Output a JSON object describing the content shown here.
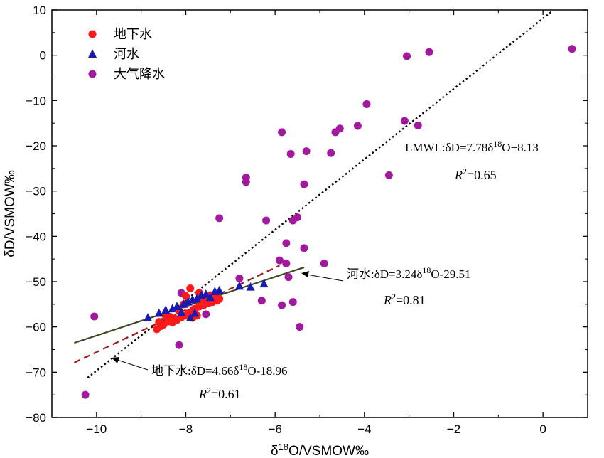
{
  "chart_data": {
    "type": "scatter",
    "xlabel": "δ18O/VSMOW‰",
    "xlabel_parts": {
      "pre": "δ",
      "sup": "18",
      "post": "O/VSMOW‰"
    },
    "ylabel": "δD/VSMOW‰",
    "xlim": [
      -11,
      1
    ],
    "ylim": [
      -80,
      10
    ],
    "xticks": [
      -10,
      -8,
      -6,
      -4,
      -2,
      0
    ],
    "yticks": [
      -80,
      -70,
      -60,
      -50,
      -40,
      -30,
      -20,
      -10,
      0,
      10
    ],
    "xtick_labels": [
      "−10",
      "−8",
      "−6",
      "−4",
      "−2",
      "0"
    ],
    "ytick_labels": [
      "−80",
      "−70",
      "−60",
      "−50",
      "−40",
      "−30",
      "−20",
      "−10",
      "0",
      "10"
    ],
    "legend_position": "top-left",
    "grid": false,
    "series": [
      {
        "name": "地下水",
        "marker": "circle",
        "color": "#ff1a1a",
        "points": [
          [
            -8.5,
            -59.5
          ],
          [
            -8.4,
            -58.8
          ],
          [
            -8.3,
            -59.0
          ],
          [
            -8.2,
            -58.5
          ],
          [
            -8.1,
            -57.9
          ],
          [
            -8.0,
            -57.5
          ],
          [
            -7.9,
            -56.8
          ],
          [
            -7.8,
            -56.0
          ],
          [
            -7.7,
            -55.5
          ],
          [
            -7.6,
            -55.2
          ],
          [
            -7.5,
            -54.8
          ],
          [
            -7.4,
            -54.5
          ],
          [
            -7.3,
            -54.2
          ],
          [
            -7.25,
            -53.8
          ],
          [
            -8.65,
            -60.5
          ],
          [
            -8.55,
            -59.8
          ],
          [
            -8.45,
            -57.5
          ],
          [
            -8.35,
            -57.8
          ],
          [
            -8.25,
            -58.2
          ],
          [
            -8.15,
            -56.5
          ],
          [
            -8.05,
            -55.0
          ],
          [
            -7.95,
            -57.0
          ],
          [
            -7.85,
            -58.0
          ],
          [
            -7.75,
            -57.5
          ],
          [
            -7.65,
            -54.0
          ],
          [
            -7.55,
            -53.5
          ],
          [
            -7.45,
            -53.0
          ],
          [
            -7.9,
            -51.5
          ],
          [
            -7.7,
            -52.5
          ],
          [
            -8.0,
            -53.2
          ],
          [
            -8.6,
            -58.9
          ],
          [
            -7.35,
            -53.2
          ]
        ]
      },
      {
        "name": "河水",
        "marker": "triangle",
        "color": "#1a1ab3",
        "points": [
          [
            -8.85,
            -58.0
          ],
          [
            -8.6,
            -57.0
          ],
          [
            -8.45,
            -56.3
          ],
          [
            -8.3,
            -56.0
          ],
          [
            -8.2,
            -55.5
          ],
          [
            -8.05,
            -55.0
          ],
          [
            -7.95,
            -54.5
          ],
          [
            -7.85,
            -54.0
          ],
          [
            -7.75,
            -53.8
          ],
          [
            -7.65,
            -53.0
          ],
          [
            -7.55,
            -52.8
          ],
          [
            -7.45,
            -53.5
          ],
          [
            -7.35,
            -52.2
          ],
          [
            -7.25,
            -52.0
          ],
          [
            -6.8,
            -51.0
          ],
          [
            -6.55,
            -51.2
          ],
          [
            -6.25,
            -50.5
          ],
          [
            -7.8,
            -57.0
          ],
          [
            -7.9,
            -58.0
          ],
          [
            -8.1,
            -56.8
          ]
        ]
      },
      {
        "name": "大气降水",
        "marker": "circle",
        "color": "#a3199e",
        "points": [
          [
            -10.25,
            -75.0
          ],
          [
            -10.05,
            -57.7
          ],
          [
            -8.15,
            -64.0
          ],
          [
            -8.1,
            -52.5
          ],
          [
            -7.55,
            -57.2
          ],
          [
            -7.25,
            -36.0
          ],
          [
            -6.65,
            -27.0
          ],
          [
            -6.65,
            -28.0
          ],
          [
            -6.8,
            -49.3
          ],
          [
            -6.3,
            -54.2
          ],
          [
            -6.2,
            -36.5
          ],
          [
            -5.9,
            -45.3
          ],
          [
            -5.85,
            -17.0
          ],
          [
            -5.85,
            -55.2
          ],
          [
            -5.75,
            -46.0
          ],
          [
            -5.75,
            -41.5
          ],
          [
            -5.7,
            -49.0
          ],
          [
            -5.65,
            -21.8
          ],
          [
            -5.6,
            -36.5
          ],
          [
            -5.6,
            -54.5
          ],
          [
            -5.5,
            -35.8
          ],
          [
            -5.45,
            -60.0
          ],
          [
            -5.35,
            -42.6
          ],
          [
            -5.35,
            -28.5
          ],
          [
            -5.3,
            -21.2
          ],
          [
            -4.9,
            -46.0
          ],
          [
            -4.75,
            -21.6
          ],
          [
            -4.65,
            -17.0
          ],
          [
            -4.55,
            -16.2
          ],
          [
            -4.15,
            -15.6
          ],
          [
            -3.95,
            -10.8
          ],
          [
            -3.45,
            -26.5
          ],
          [
            -3.1,
            -14.5
          ],
          [
            -3.05,
            -0.2
          ],
          [
            -2.8,
            -15.5
          ],
          [
            -2.55,
            0.7
          ],
          [
            0.65,
            1.4
          ]
        ]
      }
    ],
    "fit_lines": [
      {
        "name": "LMWL",
        "style": "dotted",
        "color": "#000000",
        "slope": 7.78,
        "intercept": 8.13,
        "x_range": [
          -10.2,
          0.2
        ]
      },
      {
        "name": "地下水",
        "style": "dashed",
        "color": "#a01818",
        "slope": 4.66,
        "intercept": -18.96,
        "x_range": [
          -10.5,
          -5.9
        ]
      },
      {
        "name": "河水",
        "style": "solid",
        "color": "#3b4a22",
        "slope": 3.24,
        "intercept": -29.51,
        "x_range": [
          -10.5,
          -5.35
        ]
      }
    ],
    "annotations": [
      {
        "id": "lmwl",
        "label_pre": "LMWL:δD=7.78δ",
        "label_sup": "18",
        "label_post": "O+8.13",
        "r2_label": "R",
        "r2_sup": "2",
        "r2_value": "=0.65"
      },
      {
        "id": "river",
        "label_pre": "河水:δD=3.24δ",
        "label_sup": "18",
        "label_post": "O-29.51",
        "r2_label": "R",
        "r2_sup": "2",
        "r2_value": "=0.81"
      },
      {
        "id": "ground",
        "label_pre": "地下水:δD=4.66δ",
        "label_sup": "18",
        "label_post": "O-18.96",
        "r2_label": "R",
        "r2_sup": "2",
        "r2_value": "=0.61"
      }
    ]
  }
}
